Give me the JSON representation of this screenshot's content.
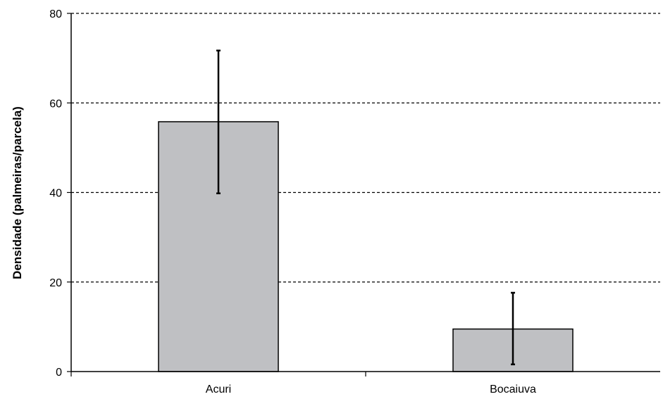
{
  "chart_data": {
    "type": "bar",
    "title": "",
    "xlabel": "",
    "ylabel": "Densidade (palmeiras/parcela)",
    "categories": [
      "Acuri",
      "Bocaiuva"
    ],
    "values": [
      55.8,
      9.5
    ],
    "error_low": [
      39.8,
      1.6
    ],
    "error_high": [
      71.7,
      17.6
    ],
    "ylim": [
      0,
      80
    ],
    "yticks": [
      0,
      20,
      40,
      60,
      80
    ],
    "grid": "horizontal dashed",
    "legend": "none",
    "colors": {
      "bar_fill": "#bfc0c3",
      "bar_stroke": "#000000",
      "grid": "#000000",
      "error_bar": "#000000"
    }
  }
}
